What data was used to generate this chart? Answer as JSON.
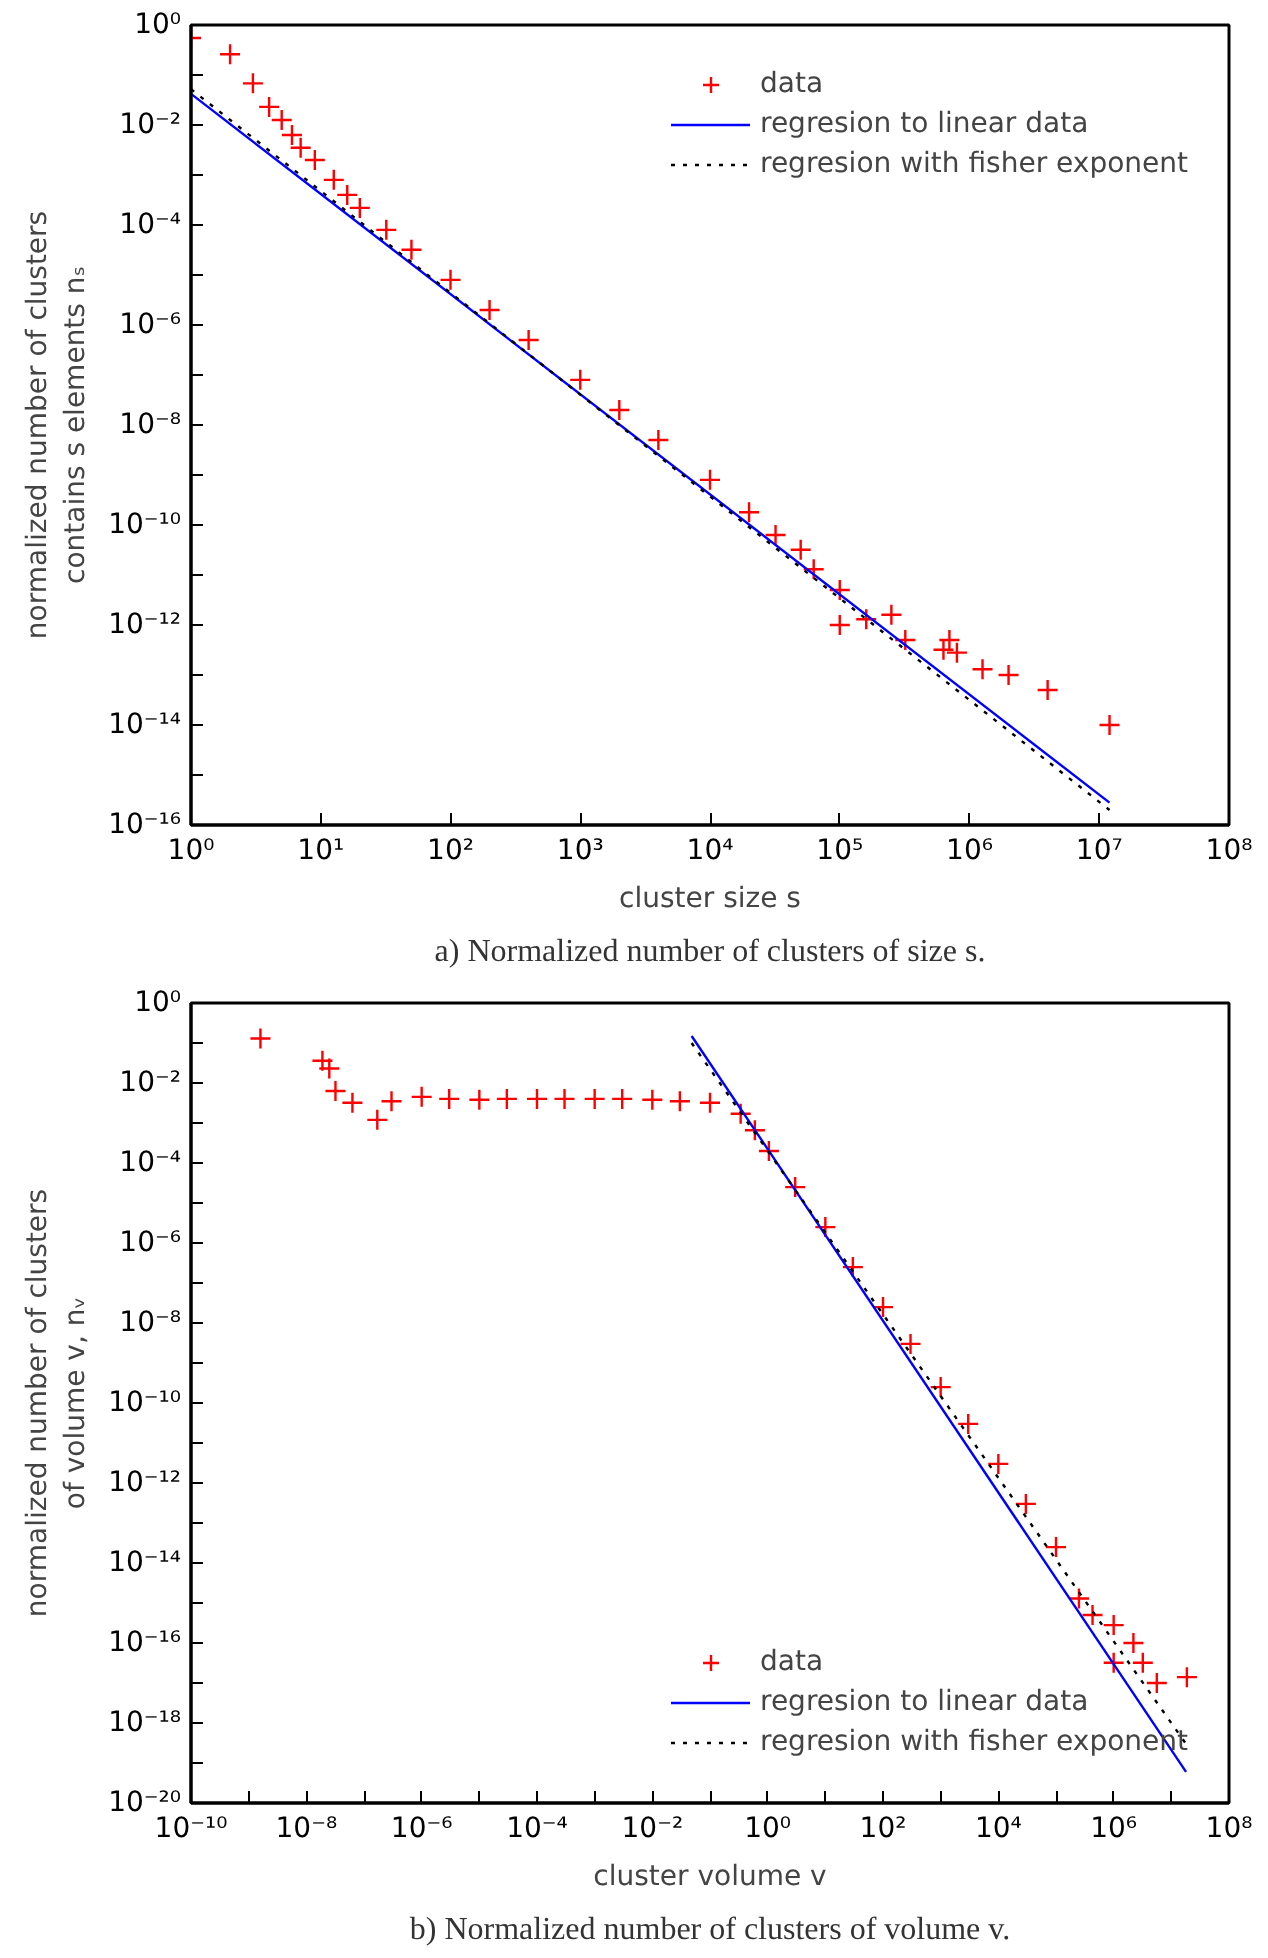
{
  "chart_data": [
    {
      "type": "scatter",
      "xlabel": "cluster size s",
      "ylabel": "normalized number of clusters\ncontains s elements nₛ",
      "annotations": [
        "a) Normalized number of clusters of size s."
      ],
      "log": "xy",
      "grid": false,
      "legend": "top right",
      "xlim": [
        1,
        100000000
      ],
      "ylim": [
        1e-16,
        1
      ],
      "xticks": [
        {
          "value": 1,
          "label": "10⁰"
        },
        {
          "value": 10,
          "label": "10¹"
        },
        {
          "value": 100,
          "label": "10²"
        },
        {
          "value": 1000,
          "label": "10³"
        },
        {
          "value": 10000,
          "label": "10⁴"
        },
        {
          "value": 100000,
          "label": "10⁵"
        },
        {
          "value": 1000000,
          "label": "10⁶"
        },
        {
          "value": 10000000,
          "label": "10⁷"
        },
        {
          "value": 100000000,
          "label": "10⁸"
        }
      ],
      "yticks": [
        {
          "value": 1e-16,
          "label": "10⁻¹⁶"
        },
        {
          "value": 1e-15,
          "label": null
        },
        {
          "value": 1e-14,
          "label": "10⁻¹⁴"
        },
        {
          "value": 1e-13,
          "label": null
        },
        {
          "value": 1e-12,
          "label": "10⁻¹²"
        },
        {
          "value": 1e-11,
          "label": null
        },
        {
          "value": 1e-10,
          "label": "10⁻¹⁰"
        },
        {
          "value": 1e-09,
          "label": null
        },
        {
          "value": 1e-08,
          "label": "10⁻⁸"
        },
        {
          "value": 1e-07,
          "label": null
        },
        {
          "value": 1e-06,
          "label": "10⁻⁶"
        },
        {
          "value": 1e-05,
          "label": null
        },
        {
          "value": 0.0001,
          "label": "10⁻⁴"
        },
        {
          "value": 0.001,
          "label": null
        },
        {
          "value": 0.01,
          "label": "10⁻²"
        },
        {
          "value": 0.1,
          "label": null
        },
        {
          "value": 1,
          "label": "10⁰"
        }
      ],
      "series": [
        {
          "name": "data",
          "marker": "cross",
          "color": "#ff0000",
          "x": [
            1,
            2,
            3,
            4,
            5,
            6,
            7,
            9,
            12.6,
            16,
            20,
            32,
            50,
            100,
            200,
            400,
            1000,
            2000,
            4000,
            10000,
            20000,
            32000,
            50000,
            63000,
            100000,
            100000,
            160000,
            250000,
            320000,
            630000,
            700000,
            800000,
            1260000,
            2000000,
            4000000,
            12000000
          ],
          "values": [
            0.55,
            0.26,
            0.068,
            0.023,
            0.0126,
            0.0063,
            0.0035,
            0.002,
            0.0008,
            0.0004,
            0.00022,
            8e-05,
            3.2e-05,
            8e-06,
            2e-06,
            5e-07,
            8e-08,
            2e-08,
            5e-09,
            8e-10,
            1.8e-10,
            6.3e-11,
            3.2e-11,
            1.3e-11,
            5e-12,
            1e-12,
            1.3e-12,
            1.6e-12,
            5e-13,
            3.2e-13,
            5e-13,
            2.8e-13,
            1.3e-13,
            1e-13,
            5e-14,
            1e-14
          ]
        },
        {
          "name": "regresion to linear data",
          "type": "line",
          "line_style": "solid",
          "color": "#0000ff",
          "x": [
            1,
            12000000
          ],
          "values": [
            0.042,
            2.8e-16
          ]
        },
        {
          "name": "regresion with fisher exponent",
          "type": "line",
          "line_style": "dotted",
          "color": "#000000",
          "x": [
            1,
            12000000
          ],
          "values": [
            0.052,
            2e-16
          ]
        }
      ]
    },
    {
      "type": "scatter",
      "xlabel": "cluster volume v",
      "ylabel": "normalized number of clusters\nof volume v, nᵥ",
      "annotations": [
        "b) Normalized number of clusters of volume v."
      ],
      "log": "xy",
      "grid": false,
      "legend": "bottom right",
      "xlim": [
        1e-10,
        100000000
      ],
      "ylim": [
        1e-20,
        1
      ],
      "xticks": [
        {
          "value": 1e-10,
          "label": "10⁻¹⁰"
        },
        {
          "value": 1e-09,
          "label": null
        },
        {
          "value": 1e-08,
          "label": "10⁻⁸"
        },
        {
          "value": 1e-07,
          "label": null
        },
        {
          "value": 1e-06,
          "label": "10⁻⁶"
        },
        {
          "value": 1e-05,
          "label": null
        },
        {
          "value": 0.0001,
          "label": "10⁻⁴"
        },
        {
          "value": 0.001,
          "label": null
        },
        {
          "value": 0.01,
          "label": "10⁻²"
        },
        {
          "value": 0.1,
          "label": null
        },
        {
          "value": 1,
          "label": "10⁰"
        },
        {
          "value": 10,
          "label": null
        },
        {
          "value": 100,
          "label": "10²"
        },
        {
          "value": 1000,
          "label": null
        },
        {
          "value": 10000,
          "label": "10⁴"
        },
        {
          "value": 100000,
          "label": null
        },
        {
          "value": 1000000,
          "label": "10⁶"
        },
        {
          "value": 10000000,
          "label": null
        },
        {
          "value": 100000000,
          "label": "10⁸"
        }
      ],
      "yticks": [
        {
          "value": 1e-20,
          "label": "10⁻²⁰"
        },
        {
          "value": 1e-19,
          "label": null
        },
        {
          "value": 1e-18,
          "label": "10⁻¹⁸"
        },
        {
          "value": 1e-17,
          "label": null
        },
        {
          "value": 1e-16,
          "label": "10⁻¹⁶"
        },
        {
          "value": 1e-15,
          "label": null
        },
        {
          "value": 1e-14,
          "label": "10⁻¹⁴"
        },
        {
          "value": 1e-13,
          "label": null
        },
        {
          "value": 1e-12,
          "label": "10⁻¹²"
        },
        {
          "value": 1e-11,
          "label": null
        },
        {
          "value": 1e-10,
          "label": "10⁻¹⁰"
        },
        {
          "value": 1e-09,
          "label": null
        },
        {
          "value": 1e-08,
          "label": "10⁻⁸"
        },
        {
          "value": 1e-07,
          "label": null
        },
        {
          "value": 1e-06,
          "label": "10⁻⁶"
        },
        {
          "value": 1e-05,
          "label": null
        },
        {
          "value": 0.0001,
          "label": "10⁻⁴"
        },
        {
          "value": 0.001,
          "label": null
        },
        {
          "value": 0.01,
          "label": "10⁻²"
        },
        {
          "value": 0.1,
          "label": null
        },
        {
          "value": 1,
          "label": "10⁰"
        }
      ],
      "series": [
        {
          "name": "data",
          "marker": "cross",
          "color": "#ff0000",
          "x": [
            1.6e-09,
            1.9e-08,
            2.5e-08,
            3.2e-08,
            6.3e-08,
            1.7e-07,
            3e-07,
            1e-06,
            3e-06,
            1e-05,
            3e-05,
            0.0001,
            0.0003,
            0.001,
            0.003,
            0.01,
            0.03,
            0.1,
            0.34,
            0.6,
            1.05,
            3,
            10,
            30,
            100,
            300,
            1000,
            3000,
            10000,
            30000,
            100000,
            250000,
            430000,
            1000000,
            1000000,
            2200000,
            3200000,
            5600000,
            18600000
          ],
          "values": [
            0.13,
            0.036,
            0.023,
            0.0063,
            0.0032,
            0.0012,
            0.0035,
            0.0045,
            0.004,
            0.0038,
            0.004,
            0.004,
            0.004,
            0.004,
            0.004,
            0.0038,
            0.0035,
            0.0032,
            0.0017,
            0.00066,
            0.0002,
            2.5e-05,
            2.5e-06,
            2.5e-07,
            2.5e-08,
            3e-09,
            2.5e-10,
            3e-11,
            3e-12,
            3e-13,
            2.5e-14,
            1.3e-15,
            5e-16,
            2.8e-16,
            3.2e-17,
            1e-16,
            3.2e-17,
            1e-17,
            1.4e-17
          ]
        },
        {
          "name": "regresion to linear data",
          "type": "line",
          "line_style": "solid",
          "color": "#0000ff",
          "x": [
            0.048,
            18000000
          ],
          "values": [
            0.15,
            6e-20
          ]
        },
        {
          "name": "regresion with fisher exponent",
          "type": "line",
          "line_style": "dotted",
          "color": "#000000",
          "x": [
            0.048,
            18000000
          ],
          "values": [
            0.1,
            3e-19
          ]
        }
      ]
    }
  ]
}
